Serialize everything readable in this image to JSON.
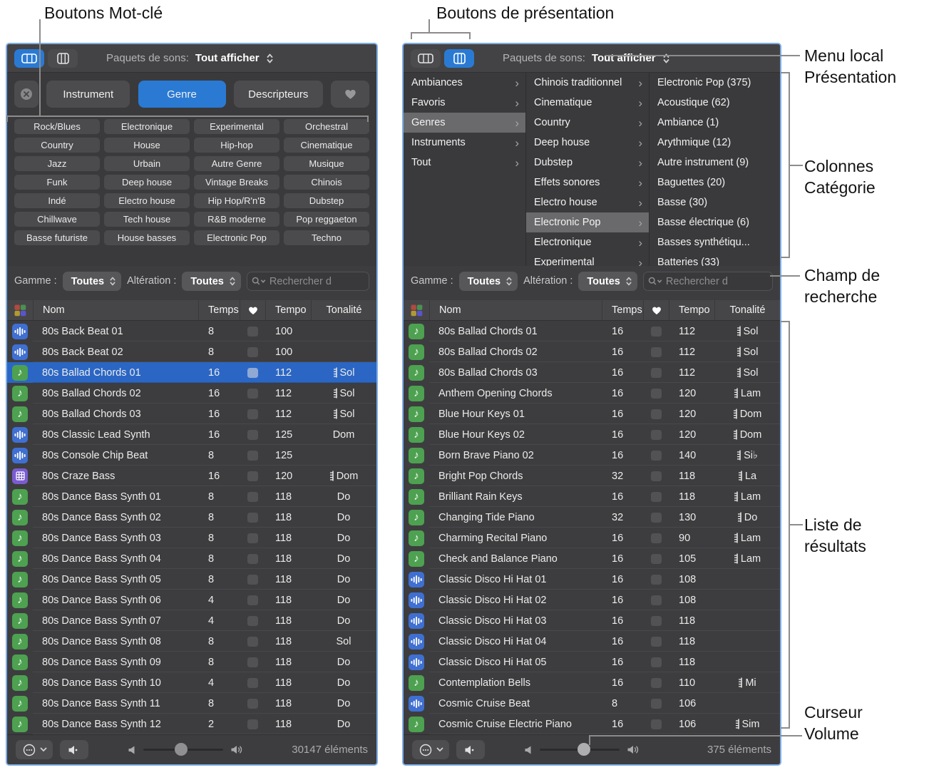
{
  "annotations": {
    "keyword_buttons_label": "Boutons Mot-clé",
    "view_buttons_label": "Boutons de présentation",
    "local_menu_label": "Menu local Présentation",
    "category_columns_label": "Colonnes Catégorie",
    "search_field_label": "Champ de recherche",
    "results_list_label": "Liste de résultats",
    "volume_slider_label": "Curseur Volume"
  },
  "shared": {
    "sound_packs_label": "Paquets de sons:",
    "sound_packs_value": "Tout afficher",
    "scale_label": "Gamme :",
    "scale_value": "Toutes",
    "alteration_label": "Altération :",
    "alteration_value": "Toutes",
    "search_placeholder": "Rechercher d",
    "columns": {
      "name": "Nom",
      "beats": "Temps",
      "tempo": "Tempo",
      "key": "Tonalité"
    }
  },
  "colors": {
    "accent_blue": "#2a7ad4",
    "selected_row_blue": "#2b66c4",
    "panel_border_blue": "#7dade6",
    "midi_icon_green": "#4da150",
    "audio_icon_blue": "#3f6fd1",
    "pattern_icon_purple": "#7a5cd0"
  },
  "left_panel": {
    "view": "keyword-buttons",
    "category_buttons": [
      {
        "label": "Instrument",
        "selected": false
      },
      {
        "label": "Genre",
        "selected": true
      },
      {
        "label": "Descripteurs",
        "selected": false
      }
    ],
    "keyword_buttons": [
      "Rock/Blues",
      "Electronique",
      "Experimental",
      "Orchestral",
      "Country",
      "House",
      "Hip-hop",
      "Cinematique",
      "Jazz",
      "Urbain",
      "Autre Genre",
      "Musique",
      "Funk",
      "Deep house",
      "Vintage Breaks",
      "Chinois",
      "Indé",
      "Electro house",
      "Hip Hop/R'n'B",
      "Dubstep",
      "Chillwave",
      "Tech house",
      "R&B moderne",
      "Pop reggaeton",
      "Basse futuriste",
      "House basses",
      "Electronic Pop",
      "Techno"
    ],
    "rows": [
      {
        "type": "audio-loop",
        "name": "80s Back Beat 01",
        "beats": "8",
        "tempo": "100",
        "key": "",
        "key_glyph": false,
        "selected": false
      },
      {
        "type": "audio-loop",
        "name": "80s Back Beat 02",
        "beats": "8",
        "tempo": "100",
        "key": "",
        "key_glyph": false,
        "selected": false
      },
      {
        "type": "midi-loop",
        "name": "80s Ballad Chords 01",
        "beats": "16",
        "tempo": "112",
        "key": "Sol",
        "key_glyph": true,
        "selected": true
      },
      {
        "type": "midi-loop",
        "name": "80s Ballad Chords 02",
        "beats": "16",
        "tempo": "112",
        "key": "Sol",
        "key_glyph": true,
        "selected": false
      },
      {
        "type": "midi-loop",
        "name": "80s Ballad Chords 03",
        "beats": "16",
        "tempo": "112",
        "key": "Sol",
        "key_glyph": true,
        "selected": false
      },
      {
        "type": "audio-loop",
        "name": "80s Classic Lead Synth",
        "beats": "16",
        "tempo": "125",
        "key": "Dom",
        "key_glyph": false,
        "selected": false
      },
      {
        "type": "audio-loop",
        "name": "80s Console Chip Beat",
        "beats": "8",
        "tempo": "125",
        "key": "",
        "key_glyph": false,
        "selected": false
      },
      {
        "type": "pattern-loop",
        "name": "80s Craze Bass",
        "beats": "16",
        "tempo": "120",
        "key": "Dom",
        "key_glyph": true,
        "selected": false
      },
      {
        "type": "midi-loop",
        "name": "80s Dance Bass Synth 01",
        "beats": "8",
        "tempo": "118",
        "key": "Do",
        "key_glyph": false,
        "selected": false
      },
      {
        "type": "midi-loop",
        "name": "80s Dance Bass Synth 02",
        "beats": "8",
        "tempo": "118",
        "key": "Do",
        "key_glyph": false,
        "selected": false
      },
      {
        "type": "midi-loop",
        "name": "80s Dance Bass Synth 03",
        "beats": "8",
        "tempo": "118",
        "key": "Do",
        "key_glyph": false,
        "selected": false
      },
      {
        "type": "midi-loop",
        "name": "80s Dance Bass Synth 04",
        "beats": "8",
        "tempo": "118",
        "key": "Do",
        "key_glyph": false,
        "selected": false
      },
      {
        "type": "midi-loop",
        "name": "80s Dance Bass Synth 05",
        "beats": "8",
        "tempo": "118",
        "key": "Do",
        "key_glyph": false,
        "selected": false
      },
      {
        "type": "midi-loop",
        "name": "80s Dance Bass Synth 06",
        "beats": "4",
        "tempo": "118",
        "key": "Do",
        "key_glyph": false,
        "selected": false
      },
      {
        "type": "midi-loop",
        "name": "80s Dance Bass Synth 07",
        "beats": "4",
        "tempo": "118",
        "key": "Do",
        "key_glyph": false,
        "selected": false
      },
      {
        "type": "midi-loop",
        "name": "80s Dance Bass Synth 08",
        "beats": "8",
        "tempo": "118",
        "key": "Sol",
        "key_glyph": false,
        "selected": false
      },
      {
        "type": "midi-loop",
        "name": "80s Dance Bass Synth 09",
        "beats": "8",
        "tempo": "118",
        "key": "Do",
        "key_glyph": false,
        "selected": false
      },
      {
        "type": "midi-loop",
        "name": "80s Dance Bass Synth 10",
        "beats": "4",
        "tempo": "118",
        "key": "Do",
        "key_glyph": false,
        "selected": false
      },
      {
        "type": "midi-loop",
        "name": "80s Dance Bass Synth 11",
        "beats": "8",
        "tempo": "118",
        "key": "Do",
        "key_glyph": false,
        "selected": false
      },
      {
        "type": "midi-loop",
        "name": "80s Dance Bass Synth 12",
        "beats": "2",
        "tempo": "118",
        "key": "Do",
        "key_glyph": false,
        "selected": false
      }
    ],
    "items_count": "30147 éléments",
    "volume_position": 0.47
  },
  "right_panel": {
    "view": "columns",
    "browser_columns": [
      [
        {
          "label": "Ambiances",
          "chevron": true,
          "selected": false
        },
        {
          "label": "Favoris",
          "chevron": true,
          "selected": false
        },
        {
          "label": "Genres",
          "chevron": true,
          "selected": true
        },
        {
          "label": "Instruments",
          "chevron": true,
          "selected": false
        },
        {
          "label": "Tout",
          "chevron": true,
          "selected": false
        }
      ],
      [
        {
          "label": "Chinois traditionnel",
          "chevron": true,
          "selected": false
        },
        {
          "label": "Cinematique",
          "chevron": true,
          "selected": false
        },
        {
          "label": "Country",
          "chevron": true,
          "selected": false
        },
        {
          "label": "Deep house",
          "chevron": true,
          "selected": false
        },
        {
          "label": "Dubstep",
          "chevron": true,
          "selected": false
        },
        {
          "label": "Effets sonores",
          "chevron": true,
          "selected": false
        },
        {
          "label": "Electro house",
          "chevron": true,
          "selected": false
        },
        {
          "label": "Electronic Pop",
          "chevron": true,
          "selected": true
        },
        {
          "label": "Electronique",
          "chevron": true,
          "selected": false
        },
        {
          "label": "Experimental",
          "chevron": true,
          "selected": false
        }
      ],
      [
        {
          "label": "Electronic Pop (375)",
          "chevron": false,
          "selected": false
        },
        {
          "label": "Acoustique (62)",
          "chevron": false,
          "selected": false
        },
        {
          "label": "Ambiance (1)",
          "chevron": false,
          "selected": false
        },
        {
          "label": "Arythmique (12)",
          "chevron": false,
          "selected": false
        },
        {
          "label": "Autre instrument (9)",
          "chevron": false,
          "selected": false
        },
        {
          "label": "Baguettes (20)",
          "chevron": false,
          "selected": false
        },
        {
          "label": "Basse (30)",
          "chevron": false,
          "selected": false
        },
        {
          "label": "Basse électrique (6)",
          "chevron": false,
          "selected": false
        },
        {
          "label": "Basses synthétiqu...",
          "chevron": false,
          "selected": false
        },
        {
          "label": "Batteries (33)",
          "chevron": false,
          "selected": false
        }
      ]
    ],
    "rows": [
      {
        "type": "midi-loop",
        "name": "80s Ballad Chords 01",
        "beats": "16",
        "tempo": "112",
        "key": "Sol",
        "key_glyph": true,
        "selected": false
      },
      {
        "type": "midi-loop",
        "name": "80s Ballad Chords 02",
        "beats": "16",
        "tempo": "112",
        "key": "Sol",
        "key_glyph": true,
        "selected": false
      },
      {
        "type": "midi-loop",
        "name": "80s Ballad Chords 03",
        "beats": "16",
        "tempo": "112",
        "key": "Sol",
        "key_glyph": true,
        "selected": false
      },
      {
        "type": "midi-loop",
        "name": "Anthem Opening Chords",
        "beats": "16",
        "tempo": "120",
        "key": "Lam",
        "key_glyph": true,
        "selected": false
      },
      {
        "type": "midi-loop",
        "name": "Blue Hour Keys 01",
        "beats": "16",
        "tempo": "120",
        "key": "Dom",
        "key_glyph": true,
        "selected": false
      },
      {
        "type": "midi-loop",
        "name": "Blue Hour Keys 02",
        "beats": "16",
        "tempo": "120",
        "key": "Dom",
        "key_glyph": true,
        "selected": false
      },
      {
        "type": "midi-loop",
        "name": "Born Brave Piano 02",
        "beats": "16",
        "tempo": "140",
        "key": "Si♭",
        "key_glyph": true,
        "selected": false
      },
      {
        "type": "midi-loop",
        "name": "Bright Pop Chords",
        "beats": "32",
        "tempo": "118",
        "key": "La",
        "key_glyph": true,
        "selected": false
      },
      {
        "type": "midi-loop",
        "name": "Brilliant Rain Keys",
        "beats": "16",
        "tempo": "118",
        "key": "Lam",
        "key_glyph": true,
        "selected": false
      },
      {
        "type": "midi-loop",
        "name": "Changing Tide Piano",
        "beats": "32",
        "tempo": "130",
        "key": "Do",
        "key_glyph": true,
        "selected": false
      },
      {
        "type": "midi-loop",
        "name": "Charming Recital Piano",
        "beats": "16",
        "tempo": "90",
        "key": "Lam",
        "key_glyph": true,
        "selected": false
      },
      {
        "type": "midi-loop",
        "name": "Check and Balance Piano",
        "beats": "16",
        "tempo": "105",
        "key": "Lam",
        "key_glyph": true,
        "selected": false
      },
      {
        "type": "audio-loop",
        "name": "Classic Disco Hi Hat 01",
        "beats": "16",
        "tempo": "108",
        "key": "",
        "key_glyph": false,
        "selected": false
      },
      {
        "type": "audio-loop",
        "name": "Classic Disco Hi Hat 02",
        "beats": "16",
        "tempo": "108",
        "key": "",
        "key_glyph": false,
        "selected": false
      },
      {
        "type": "audio-loop",
        "name": "Classic Disco Hi Hat 03",
        "beats": "16",
        "tempo": "118",
        "key": "",
        "key_glyph": false,
        "selected": false
      },
      {
        "type": "audio-loop",
        "name": "Classic Disco Hi Hat 04",
        "beats": "16",
        "tempo": "118",
        "key": "",
        "key_glyph": false,
        "selected": false
      },
      {
        "type": "audio-loop",
        "name": "Classic Disco Hi Hat 05",
        "beats": "16",
        "tempo": "118",
        "key": "",
        "key_glyph": false,
        "selected": false
      },
      {
        "type": "midi-loop",
        "name": "Contemplation Bells",
        "beats": "16",
        "tempo": "110",
        "key": "Mi",
        "key_glyph": true,
        "selected": false
      },
      {
        "type": "audio-loop",
        "name": "Cosmic Cruise Beat",
        "beats": "8",
        "tempo": "106",
        "key": "",
        "key_glyph": false,
        "selected": false
      },
      {
        "type": "midi-loop",
        "name": "Cosmic Cruise Electric Piano",
        "beats": "16",
        "tempo": "106",
        "key": "Sim",
        "key_glyph": true,
        "selected": false
      }
    ],
    "items_count": "375 éléments",
    "volume_position": 0.55
  }
}
